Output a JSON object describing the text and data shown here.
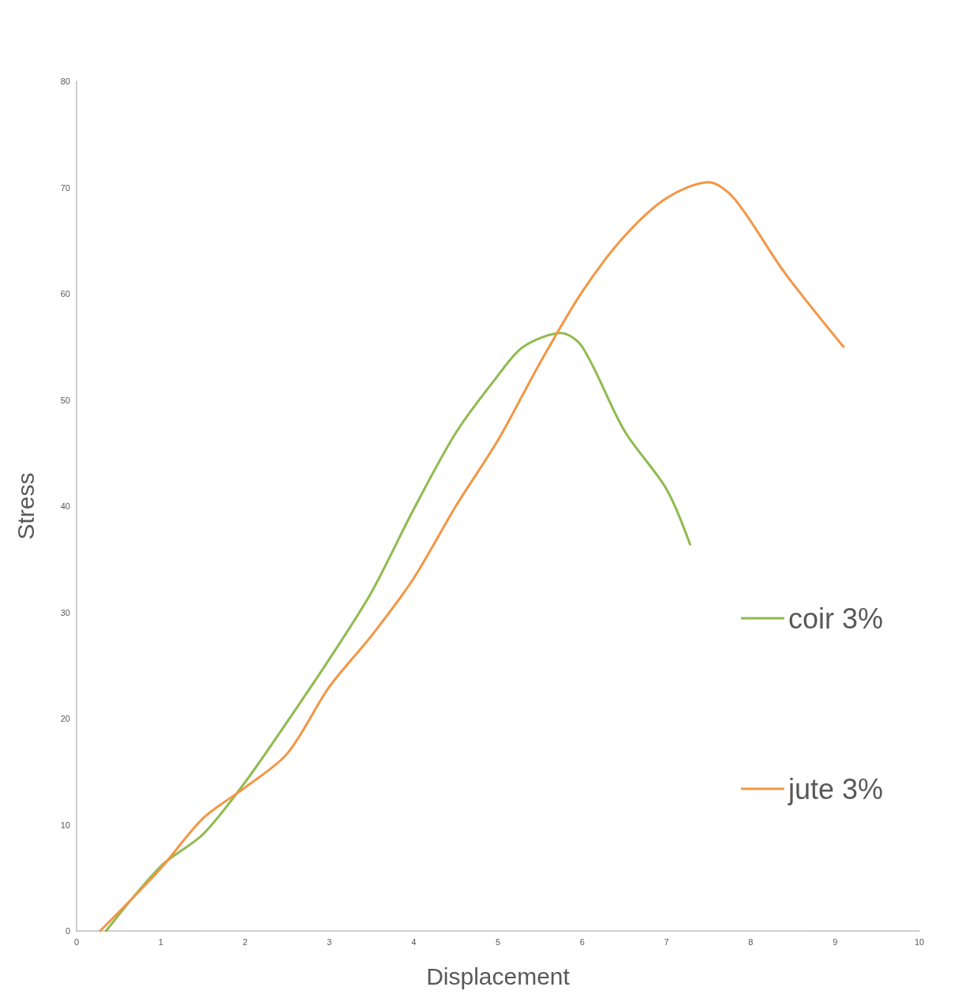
{
  "chart_data": {
    "type": "line",
    "xlabel": "Displacement",
    "ylabel": "Stress",
    "xlim": [
      0,
      10
    ],
    "xticks": [
      0,
      1,
      2,
      3,
      4,
      5,
      6,
      7,
      8,
      9,
      10
    ],
    "ylim": [
      0,
      80
    ],
    "yticks": [
      0,
      10,
      20,
      30,
      40,
      50,
      60,
      70,
      80
    ],
    "grid": false,
    "legend": "right",
    "marker": "none",
    "line_style": "solid",
    "series": [
      {
        "name": "coir 3%",
        "color": "#8fbb4e",
        "x": [
          0.35,
          1,
          1.5,
          2,
          2.5,
          3,
          3.5,
          4,
          4.5,
          5,
          5.3,
          5.75,
          6,
          6.5,
          7,
          7.28
        ],
        "values": [
          0,
          6.1,
          9.1,
          14,
          19.7,
          25.6,
          31.9,
          39.7,
          46.9,
          52.3,
          55,
          56.3,
          55,
          47.1,
          41.6,
          36.4
        ]
      },
      {
        "name": "jute 3%",
        "color": "#f39644",
        "x": [
          0.28,
          1,
          1.5,
          2,
          2.5,
          3,
          3.5,
          4,
          4.5,
          5,
          5.5,
          6,
          6.5,
          7,
          7.5,
          7.8,
          8.4,
          9.1
        ],
        "values": [
          0,
          5.9,
          10.6,
          13.5,
          16.7,
          23,
          27.8,
          33.2,
          40,
          46.2,
          53.5,
          60.2,
          65.4,
          69,
          70.5,
          69,
          62,
          55
        ]
      }
    ]
  }
}
